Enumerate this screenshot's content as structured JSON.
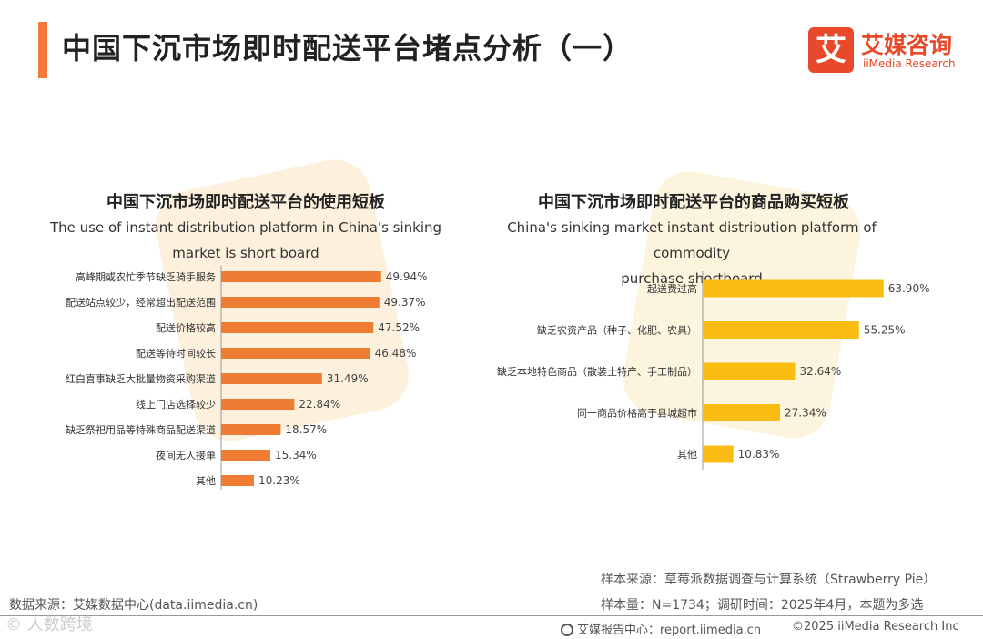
{
  "header": {
    "title": "中国下沉市场即时配送平台堵点分析（一）",
    "logo_mark": "艾",
    "logo_cn": "艾媒咨询",
    "logo_en": "iiMedia Research"
  },
  "colors": {
    "accent": "#f2793a",
    "left_bar": "#ee7d33",
    "right_bar": "#fbbd14",
    "brand": "#e8492a"
  },
  "chart_data": [
    {
      "type": "bar",
      "orientation": "horizontal",
      "title": "中国下沉市场即时配送平台的使用短板",
      "subtitle_line1": "The use of instant distribution platform in China's sinking",
      "subtitle_line2": "market is short board",
      "unit": "%",
      "categories": [
        "高峰期或农忙季节缺乏骑手服务",
        "配送站点较少，经常超出配送范围",
        "配送价格较高",
        "配送等待时间较长",
        "红白喜事缺乏大批量物资采购渠道",
        "线上门店选择较少",
        "缺乏祭祀用品等特殊商品配送渠道",
        "夜间无人接单",
        "其他"
      ],
      "values": [
        49.94,
        49.37,
        47.52,
        46.48,
        31.49,
        22.84,
        18.57,
        15.34,
        10.23
      ],
      "labels": [
        "49.94%",
        "49.37%",
        "47.52%",
        "46.48%",
        "31.49%",
        "22.84%",
        "18.57%",
        "15.34%",
        "10.23%"
      ]
    },
    {
      "type": "bar",
      "orientation": "horizontal",
      "title": "中国下沉市场即时配送平台的商品购买短板",
      "subtitle_line1": "China's sinking market instant distribution platform of commodity",
      "subtitle_line2": "purchase shortboard",
      "unit": "%",
      "categories": [
        "起送费过高",
        "缺乏农资产品（种子、化肥、农具）",
        "缺乏本地特色商品（散装土特产、手工制品）",
        "同一商品价格高于县城超市",
        "其他"
      ],
      "values": [
        63.9,
        55.25,
        32.64,
        27.34,
        10.83
      ],
      "labels": [
        "63.90%",
        "55.25%",
        "32.64%",
        "27.34%",
        "10.83%"
      ]
    }
  ],
  "footer": {
    "data_source": "数据来源：艾媒数据中心(data.iimedia.cn)",
    "sample_source": "样本来源：草莓派数据调查与计算系统（Strawberry Pie）",
    "sample_size": "样本量：N=1734；调研时间：2025年4月，本题为多选",
    "report_center": "艾媒报告中心：report.iimedia.cn",
    "copyright": "©2025  iiMedia Research  Inc",
    "watermark": "© 人数跨境"
  }
}
